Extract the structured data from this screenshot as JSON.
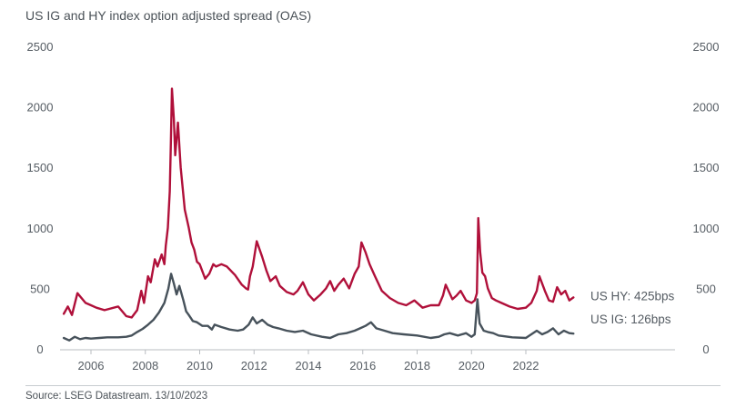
{
  "title": "US IG and HY index option adjusted spread (OAS)",
  "source": "Source: LSEG Datastream. 13/10/2023",
  "chart_data": {
    "type": "line",
    "title": "US IG and HY index option adjusted spread (OAS)",
    "xlabel": "",
    "ylabel": "",
    "xlim": [
      2005.0,
      2023.8
    ],
    "ylim": [
      0,
      2500
    ],
    "x_ticks": [
      "2006",
      "2008",
      "2010",
      "2012",
      "2014",
      "2016",
      "2018",
      "2020",
      "2022"
    ],
    "y_ticks_left": [
      "0",
      "500",
      "1000",
      "1500",
      "2000",
      "2500"
    ],
    "y_ticks_right": [
      "0",
      "500",
      "1000",
      "1500",
      "2000",
      "2500"
    ],
    "grid": false,
    "series": [
      {
        "name": "US HY",
        "label": "US HY: 425bps",
        "color": "#b0103a",
        "x": [
          2005.0,
          2005.15,
          2005.3,
          2005.5,
          2005.8,
          2006.0,
          2006.2,
          2006.5,
          2007.0,
          2007.3,
          2007.5,
          2007.7,
          2007.85,
          2007.95,
          2008.1,
          2008.2,
          2008.35,
          2008.45,
          2008.6,
          2008.7,
          2008.75,
          2008.83,
          2008.9,
          2008.94,
          2008.98,
          2009.05,
          2009.1,
          2009.2,
          2009.3,
          2009.45,
          2009.6,
          2009.7,
          2009.8,
          2009.9,
          2010.0,
          2010.2,
          2010.35,
          2010.5,
          2010.6,
          2010.8,
          2011.0,
          2011.3,
          2011.55,
          2011.7,
          2011.78,
          2011.85,
          2011.95,
          2012.1,
          2012.3,
          2012.45,
          2012.6,
          2012.8,
          2012.95,
          2013.2,
          2013.45,
          2013.6,
          2013.8,
          2014.0,
          2014.2,
          2014.45,
          2014.65,
          2014.8,
          2014.95,
          2015.1,
          2015.3,
          2015.5,
          2015.7,
          2015.85,
          2015.95,
          2016.1,
          2016.25,
          2016.45,
          2016.7,
          2017.0,
          2017.3,
          2017.6,
          2017.9,
          2018.2,
          2018.5,
          2018.8,
          2018.95,
          2019.05,
          2019.3,
          2019.45,
          2019.6,
          2019.8,
          2020.0,
          2020.12,
          2020.2,
          2020.25,
          2020.32,
          2020.4,
          2020.5,
          2020.6,
          2020.75,
          2020.9,
          2021.1,
          2021.4,
          2021.7,
          2022.0,
          2022.2,
          2022.4,
          2022.5,
          2022.7,
          2022.85,
          2023.0,
          2023.15,
          2023.3,
          2023.45,
          2023.6,
          2023.75
        ],
        "values": [
          290,
          350,
          280,
          460,
          380,
          360,
          340,
          320,
          350,
          270,
          260,
          320,
          480,
          380,
          600,
          550,
          740,
          680,
          780,
          700,
          850,
          1000,
          1300,
          1700,
          2150,
          1900,
          1600,
          1870,
          1500,
          1150,
          1000,
          880,
          820,
          720,
          700,
          580,
          620,
          700,
          680,
          700,
          680,
          610,
          530,
          500,
          490,
          600,
          680,
          890,
          760,
          650,
          560,
          600,
          520,
          470,
          450,
          480,
          550,
          450,
          400,
          450,
          500,
          560,
          480,
          530,
          580,
          500,
          620,
          680,
          880,
          800,
          700,
          600,
          480,
          420,
          380,
          360,
          400,
          340,
          360,
          360,
          440,
          530,
          410,
          440,
          480,
          400,
          380,
          400,
          460,
          1080,
          800,
          630,
          600,
          500,
          420,
          400,
          380,
          350,
          330,
          340,
          380,
          480,
          600,
          480,
          400,
          390,
          510,
          450,
          480,
          400,
          425
        ]
      },
      {
        "name": "US IG",
        "label": "US IG: 126bps",
        "color": "#47525b",
        "x": [
          2005.0,
          2005.2,
          2005.4,
          2005.6,
          2005.8,
          2006.0,
          2006.3,
          2006.6,
          2007.0,
          2007.3,
          2007.5,
          2007.7,
          2007.9,
          2008.1,
          2008.3,
          2008.5,
          2008.7,
          2008.85,
          2008.95,
          2009.05,
          2009.15,
          2009.25,
          2009.4,
          2009.5,
          2009.6,
          2009.75,
          2009.9,
          2010.1,
          2010.3,
          2010.45,
          2010.55,
          2010.8,
          2011.1,
          2011.4,
          2011.6,
          2011.8,
          2011.95,
          2012.1,
          2012.3,
          2012.5,
          2012.7,
          2012.9,
          2013.2,
          2013.5,
          2013.8,
          2014.1,
          2014.5,
          2014.8,
          2015.1,
          2015.4,
          2015.7,
          2015.9,
          2016.1,
          2016.3,
          2016.5,
          2016.8,
          2017.1,
          2017.5,
          2018.0,
          2018.5,
          2018.8,
          2019.0,
          2019.2,
          2019.5,
          2019.8,
          2020.0,
          2020.12,
          2020.22,
          2020.3,
          2020.45,
          2020.6,
          2020.8,
          2021.0,
          2021.5,
          2022.0,
          2022.2,
          2022.4,
          2022.6,
          2022.8,
          2023.0,
          2023.2,
          2023.4,
          2023.6,
          2023.75
        ],
        "values": [
          90,
          70,
          100,
          80,
          90,
          85,
          90,
          95,
          95,
          100,
          110,
          140,
          165,
          200,
          240,
          300,
          380,
          500,
          620,
          540,
          450,
          520,
          400,
          310,
          280,
          230,
          220,
          190,
          190,
          160,
          200,
          180,
          160,
          150,
          160,
          200,
          260,
          210,
          240,
          200,
          180,
          170,
          150,
          140,
          150,
          120,
          100,
          90,
          120,
          130,
          150,
          170,
          190,
          220,
          170,
          150,
          130,
          120,
          110,
          90,
          100,
          120,
          130,
          110,
          130,
          100,
          120,
          410,
          210,
          150,
          140,
          130,
          110,
          95,
          90,
          120,
          150,
          120,
          140,
          170,
          120,
          150,
          130,
          126
        ]
      }
    ]
  }
}
